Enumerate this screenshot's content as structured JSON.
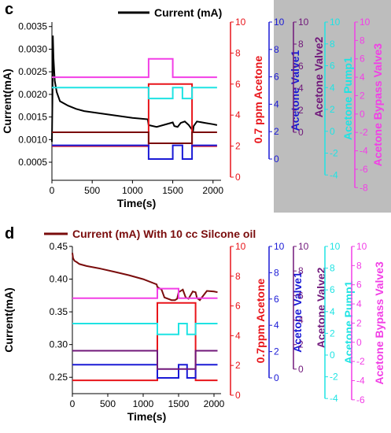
{
  "colors": {
    "current_c": "#000000",
    "current_d": "#7a0c0c",
    "acetone": "#e8141a",
    "valve1": "#1a1ad6",
    "valve2": "#70177a",
    "pump1": "#1fe3e3",
    "bypass": "#f23fe6",
    "gray_panel": "#bdbdbd",
    "dark_red_line": "#7a0c0c"
  },
  "chart_data": [
    {
      "panel_label": "c",
      "type": "line",
      "legend": "Current (mA)",
      "legend_position": "top-center",
      "grid": false,
      "xlabel": "Time(s)",
      "xlim": [
        0,
        2100
      ],
      "xticks": [
        0,
        500,
        1000,
        1500,
        2000
      ],
      "ylabel": "Current(mA)",
      "ylim": [
        0.0001,
        0.0036
      ],
      "yticks": [
        "0.0005",
        "0.0010",
        "0.0015",
        "0.0020",
        "0.0025",
        "0.0030",
        "0.0035"
      ],
      "right_axes": [
        {
          "label": "0.7 ppm Acetone",
          "ylim": [
            0,
            10
          ],
          "ticks": [
            "0",
            "2",
            "4",
            "6",
            "8",
            "10"
          ],
          "color": "#e8141a"
        },
        {
          "label": "Acetone Valve1",
          "ylim": [
            0,
            10
          ],
          "ticks": [
            "0",
            "2",
            "4",
            "6",
            "8",
            "10"
          ],
          "color": "#1a1ad6"
        },
        {
          "label": "Acetone Valve2",
          "ylim": [
            -2,
            10
          ],
          "ticks": [
            "0",
            "2",
            "4",
            "6",
            "8",
            "10"
          ],
          "color": "#70177a"
        },
        {
          "label": "Acetone Pump1",
          "ylim": [
            -6,
            10
          ],
          "ticks": [
            "-4",
            "-2",
            "0",
            "2",
            "4",
            "6",
            "8",
            "10"
          ],
          "color": "#1fe3e3"
        },
        {
          "label": "Acetone Bypass Valve3",
          "ylim": [
            -9,
            10
          ],
          "ticks": [
            "-8",
            "-6",
            "-4",
            "-2",
            "0",
            "2",
            "4",
            "6",
            "8",
            "10"
          ],
          "color": "#f23fe6"
        }
      ],
      "series": [
        {
          "name": "Current (mA)",
          "axis": 0,
          "x": [
            0,
            8,
            12,
            20,
            35,
            60,
            100,
            200,
            300,
            400,
            600,
            800,
            1000,
            1190,
            1200,
            1300,
            1400,
            1500,
            1520,
            1560,
            1600,
            1650,
            1700,
            1740,
            1750,
            1760,
            1800,
            1900,
            2000,
            2050
          ],
          "y": [
            0.00095,
            0.0021,
            0.0033,
            0.0028,
            0.0023,
            0.00205,
            0.00185,
            0.00175,
            0.00168,
            0.00163,
            0.00158,
            0.00153,
            0.00148,
            0.00145,
            0.00132,
            0.00128,
            0.00133,
            0.00138,
            0.0013,
            0.00128,
            0.00137,
            0.0014,
            0.00132,
            0.00122,
            0.00117,
            0.0013,
            0.0014,
            0.00137,
            0.00134,
            0.00132
          ]
        },
        {
          "name": "",
          "axis": 1,
          "x": [
            0,
            1200,
            1200,
            1740,
            1740,
            2050
          ],
          "y": [
            2,
            2,
            6,
            6,
            2,
            2
          ]
        },
        {
          "name": "",
          "axis": 2,
          "x": [
            0,
            1200,
            1200,
            1500,
            1500,
            1620,
            1620,
            1740,
            1740,
            2050
          ],
          "y": [
            1,
            1,
            0,
            0,
            1,
            1,
            0,
            0,
            1,
            1
          ]
        },
        {
          "name": "",
          "axis": 3,
          "x": [
            0,
            1200,
            1200,
            1740,
            1740,
            2050
          ],
          "y": [
            0,
            0,
            -1,
            -1,
            0,
            0
          ]
        },
        {
          "name": "",
          "axis": 4,
          "x": [
            0,
            1200,
            1200,
            1500,
            1500,
            1620,
            1620,
            1740,
            1740,
            2050
          ],
          "y": [
            4,
            4,
            3,
            3,
            4,
            4,
            3,
            3,
            4,
            4
          ]
        },
        {
          "name": "",
          "axis": 5,
          "x": [
            0,
            1200,
            1200,
            1500,
            1500,
            2050
          ],
          "y": [
            4,
            4,
            6,
            6,
            4,
            4
          ]
        }
      ]
    },
    {
      "panel_label": "d",
      "type": "line",
      "legend": "Current (mA) With 10 cc Silcone oil",
      "legend_position": "top-left",
      "grid": false,
      "xlabel": "Time(s)",
      "xlim": [
        0,
        2100
      ],
      "xticks": [
        0,
        500,
        1000,
        1500,
        2000
      ],
      "ylabel": "Current(mA)",
      "ylim": [
        0.225,
        0.45
      ],
      "yticks": [
        "0.25",
        "0.30",
        "0.35",
        "0.40",
        "0.45"
      ],
      "right_axes": [
        {
          "label": "0.7ppm Acetone",
          "ylim": [
            0,
            10
          ],
          "ticks": [
            "0",
            "2",
            "4",
            "6",
            "8",
            "10"
          ],
          "color": "#e8141a"
        },
        {
          "label": "Acetone Valve1",
          "ylim": [
            0,
            10
          ],
          "ticks": [
            "0",
            "2",
            "4",
            "6",
            "8",
            "10"
          ],
          "color": "#1a1ad6"
        },
        {
          "label": "Acetone Valve2",
          "ylim": [
            -2,
            10
          ],
          "ticks": [
            "0",
            "2",
            "4",
            "6",
            "8",
            "10"
          ],
          "color": "#70177a"
        },
        {
          "label": "Acetone Pump1",
          "ylim": [
            -5,
            10
          ],
          "ticks": [
            "-4",
            "-2",
            "0",
            "2",
            "4",
            "6",
            "8",
            "10"
          ],
          "color": "#1fe3e3"
        },
        {
          "label": "Acetone Bypass Valve3",
          "ylim": [
            -7,
            10
          ],
          "ticks": [
            "-6",
            "-4",
            "-2",
            "0",
            "2",
            "4",
            "6",
            "8",
            "10"
          ],
          "color": "#f23fe6"
        }
      ],
      "series": [
        {
          "name": "Current (mA) With 10 cc Silcone oil",
          "axis": 0,
          "x": [
            0,
            10,
            30,
            60,
            100,
            200,
            400,
            600,
            800,
            1000,
            1190,
            1200,
            1260,
            1300,
            1400,
            1450,
            1480,
            1500,
            1560,
            1600,
            1640,
            1700,
            1740,
            1760,
            1800,
            1900,
            2000,
            2050
          ],
          "y": [
            0.44,
            0.432,
            0.428,
            0.426,
            0.423,
            0.42,
            0.416,
            0.411,
            0.406,
            0.4,
            0.392,
            0.388,
            0.384,
            0.372,
            0.368,
            0.368,
            0.37,
            0.38,
            0.384,
            0.372,
            0.37,
            0.381,
            0.38,
            0.371,
            0.368,
            0.382,
            0.381,
            0.38
          ]
        },
        {
          "name": "",
          "axis": 1,
          "x": [
            0,
            1200,
            1200,
            1740,
            1740,
            2050
          ],
          "y": [
            1,
            1,
            6.2,
            6.2,
            1,
            1
          ]
        },
        {
          "name": "",
          "axis": 2,
          "x": [
            0,
            1200,
            1200,
            1500,
            1500,
            1620,
            1620,
            1740,
            1740,
            2050
          ],
          "y": [
            1,
            1,
            0,
            0,
            1,
            1,
            0,
            0,
            1,
            1
          ]
        },
        {
          "name": "",
          "axis": 3,
          "x": [
            0,
            1200,
            1200,
            1740,
            1740,
            2050
          ],
          "y": [
            1.5,
            1.5,
            0,
            0,
            1.5,
            1.5
          ]
        },
        {
          "name": "",
          "axis": 4,
          "x": [
            0,
            1200,
            1200,
            1500,
            1500,
            1620,
            1620,
            1740,
            1740,
            2050
          ],
          "y": [
            2.9,
            2.9,
            1.9,
            1.9,
            2.9,
            2.9,
            1.9,
            1.9,
            2.9,
            2.9
          ]
        },
        {
          "name": "",
          "axis": 5,
          "x": [
            0,
            1200,
            1200,
            1500,
            1500,
            2050
          ],
          "y": [
            4.6,
            4.6,
            5.6,
            5.6,
            4.6,
            4.6
          ]
        }
      ]
    }
  ]
}
